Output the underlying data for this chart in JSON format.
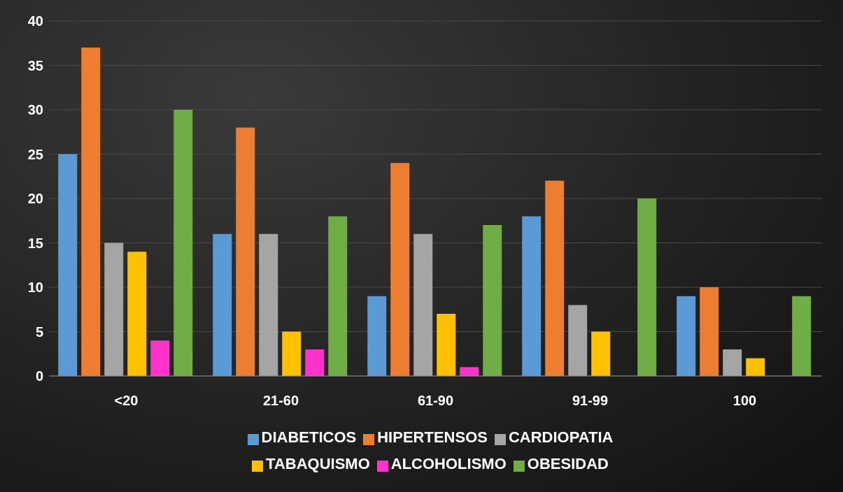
{
  "chart_data": {
    "type": "bar",
    "categories": [
      "<20",
      "21-60",
      "61-90",
      "91-99",
      "100"
    ],
    "series": [
      {
        "name": "DIABETICOS",
        "color": "#5b9bd5",
        "values": [
          25,
          16,
          9,
          18,
          9
        ]
      },
      {
        "name": "HIPERTENSOS",
        "color": "#ed7d31",
        "values": [
          37,
          28,
          24,
          22,
          10
        ]
      },
      {
        "name": "CARDIOPATIA",
        "color": "#a5a5a5",
        "values": [
          15,
          16,
          16,
          8,
          3
        ]
      },
      {
        "name": "TABAQUISMO",
        "color": "#ffc000",
        "values": [
          14,
          5,
          7,
          5,
          2
        ]
      },
      {
        "name": "ALCOHOLISMO",
        "color": "#ff33cc",
        "values": [
          4,
          3,
          1,
          0,
          0
        ]
      },
      {
        "name": "OBESIDAD",
        "color": "#70ad47",
        "values": [
          30,
          18,
          17,
          20,
          9
        ]
      }
    ],
    "ylim": [
      0,
      40
    ],
    "yticks": [
      0,
      5,
      10,
      15,
      20,
      25,
      30,
      35,
      40
    ],
    "grid": "y",
    "legend": "bottom"
  }
}
